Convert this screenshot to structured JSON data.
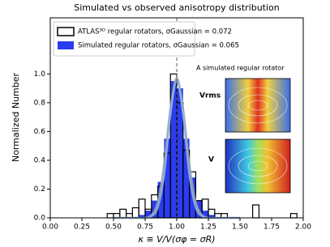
{
  "chart_data": {
    "type": "histogram",
    "title": "Simulated vs observed anisotropy distribution",
    "xlabel": "κ ≡ V/V(σφ = σR)",
    "ylabel": "Normalized Number",
    "bins": [
      0.4,
      0.45,
      0.5,
      0.55,
      0.6,
      0.65,
      0.7,
      0.75,
      0.8,
      0.85,
      0.9,
      0.95,
      1.0,
      1.05,
      1.1,
      1.15,
      1.2,
      1.25,
      1.3,
      1.35,
      1.4,
      1.45,
      1.5,
      1.55,
      1.6,
      1.65,
      1.7,
      1.75,
      1.8,
      1.85,
      1.9,
      1.95,
      2.0
    ],
    "series": [
      {
        "name": "Simulated regular rotators, σGaussian = 0.065",
        "color": "#2b3cf0",
        "fill": true,
        "values": [
          0,
          0,
          0,
          0,
          0,
          0,
          0.02,
          0.05,
          0.12,
          0.25,
          0.55,
          0.95,
          0.9,
          0.55,
          0.28,
          0.12,
          0.05,
          0.02,
          0,
          0,
          0,
          0,
          0,
          0,
          0,
          0,
          0,
          0,
          0,
          0,
          0,
          0
        ]
      },
      {
        "name": "ATLAS³ᴰ regular rotators, σGaussian = 0.072",
        "color": "#000000",
        "fill": false,
        "values": [
          0,
          0.03,
          0.03,
          0.06,
          0.03,
          0.07,
          0.13,
          0.06,
          0.16,
          0.22,
          0.45,
          1.0,
          0.8,
          0.47,
          0.32,
          0.12,
          0.13,
          0.06,
          0.03,
          0.03,
          0,
          0,
          0,
          0,
          0.09,
          0,
          0,
          0,
          0,
          0,
          0.03,
          0
        ]
      }
    ],
    "curves": [
      {
        "color": "#9aa3b5",
        "x": [
          0.5,
          0.55,
          0.6,
          0.65,
          0.7,
          0.75,
          0.8,
          0.85,
          0.9,
          0.95,
          1.0,
          1.05,
          1.1,
          1.15,
          1.2,
          1.25,
          1.3,
          1.35,
          1.4,
          1.45,
          1.5
        ],
        "values": [
          0,
          0,
          0,
          0,
          0,
          0,
          0.02,
          0.11,
          0.37,
          0.76,
          0.97,
          0.76,
          0.37,
          0.11,
          0.02,
          0,
          0,
          0,
          0,
          0,
          0
        ]
      },
      {
        "color": "#8db6e6",
        "x": [
          0.5,
          0.55,
          0.6,
          0.65,
          0.7,
          0.75,
          0.8,
          0.85,
          0.9,
          0.95,
          1.0,
          1.05,
          1.1,
          1.15,
          1.2,
          1.25,
          1.3,
          1.35,
          1.4,
          1.45,
          1.5
        ],
        "values": [
          0,
          0,
          0,
          0,
          0,
          0,
          0.01,
          0.07,
          0.29,
          0.71,
          0.95,
          0.71,
          0.29,
          0.07,
          0.01,
          0,
          0,
          0,
          0,
          0,
          0
        ]
      }
    ],
    "vline": 1.0,
    "xlim": [
      0,
      2
    ],
    "ylim": [
      0,
      1.39
    ],
    "xticks": [
      {
        "value": 0,
        "label": "0.00"
      },
      {
        "value": 0.25,
        "label": "0.25"
      },
      {
        "value": 0.5,
        "label": "0.50"
      },
      {
        "value": 0.75,
        "label": "0.75"
      },
      {
        "value": 1,
        "label": "1.00"
      },
      {
        "value": 1.25,
        "label": "1.25"
      },
      {
        "value": 1.5,
        "label": "1.50"
      },
      {
        "value": 1.75,
        "label": "1.75"
      },
      {
        "value": 2,
        "label": "2.00"
      }
    ],
    "yticks": [
      {
        "value": 0,
        "label": "0.0"
      },
      0.2,
      0.4,
      0.6,
      0.8,
      {
        "value": 1,
        "label": "1.0"
      }
    ],
    "inset": {
      "title": "A simulated regular rotator",
      "top_label": "Vrms",
      "bottom_label": "V"
    }
  }
}
